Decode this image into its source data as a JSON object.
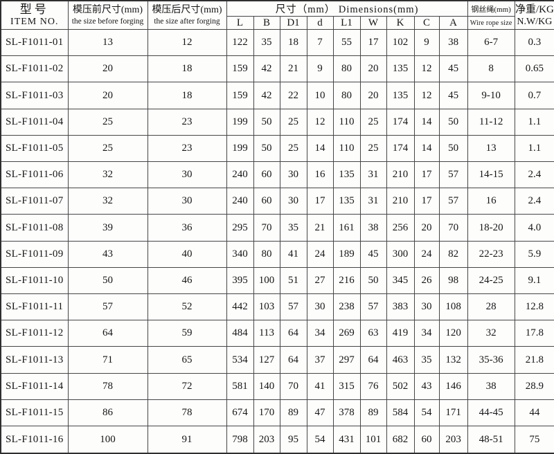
{
  "header": {
    "item_no": {
      "zh": "型号",
      "en": "ITEM NO."
    },
    "before_size": {
      "zh": "模压前尺寸(mm)",
      "en": "the size before forging"
    },
    "after_size": {
      "zh": "模压后尺寸(mm)",
      "en": "the size after forging"
    },
    "dimensions": {
      "title": "尺寸（mm） Dimensions(mm)",
      "sub": [
        "L",
        "B",
        "D1",
        "d",
        "L1",
        "W",
        "K",
        "C",
        "A"
      ]
    },
    "wire_rope": {
      "zh": "钢丝绳(mm)",
      "en": "Wire rope size"
    },
    "net_weight": {
      "zh": "净重/KG",
      "en": "N.W/KG"
    }
  },
  "table": {
    "rows": [
      {
        "item": "SL-F1011-01",
        "before": "13",
        "after": "12",
        "dims": [
          "122",
          "35",
          "18",
          "7",
          "55",
          "17",
          "102",
          "9",
          "38"
        ],
        "wire": "6-7",
        "nw": "0.3"
      },
      {
        "item": "SL-F1011-02",
        "before": "20",
        "after": "18",
        "dims": [
          "159",
          "42",
          "21",
          "9",
          "80",
          "20",
          "135",
          "12",
          "45"
        ],
        "wire": "8",
        "nw": "0.65"
      },
      {
        "item": "SL-F1011-03",
        "before": "20",
        "after": "18",
        "dims": [
          "159",
          "42",
          "22",
          "10",
          "80",
          "20",
          "135",
          "12",
          "45"
        ],
        "wire": "9-10",
        "nw": "0.7"
      },
      {
        "item": "SL-F1011-04",
        "before": "25",
        "after": "23",
        "dims": [
          "199",
          "50",
          "25",
          "12",
          "110",
          "25",
          "174",
          "14",
          "50"
        ],
        "wire": "11-12",
        "nw": "1.1"
      },
      {
        "item": "SL-F1011-05",
        "before": "25",
        "after": "23",
        "dims": [
          "199",
          "50",
          "25",
          "14",
          "110",
          "25",
          "174",
          "14",
          "50"
        ],
        "wire": "13",
        "nw": "1.1"
      },
      {
        "item": "SL-F1011-06",
        "before": "32",
        "after": "30",
        "dims": [
          "240",
          "60",
          "30",
          "16",
          "135",
          "31",
          "210",
          "17",
          "57"
        ],
        "wire": "14-15",
        "nw": "2.4"
      },
      {
        "item": "SL-F1011-07",
        "before": "32",
        "after": "30",
        "dims": [
          "240",
          "60",
          "30",
          "17",
          "135",
          "31",
          "210",
          "17",
          "57"
        ],
        "wire": "16",
        "nw": "2.4"
      },
      {
        "item": "SL-F1011-08",
        "before": "39",
        "after": "36",
        "dims": [
          "295",
          "70",
          "35",
          "21",
          "161",
          "38",
          "256",
          "20",
          "70"
        ],
        "wire": "18-20",
        "nw": "4.0"
      },
      {
        "item": "SL-F1011-09",
        "before": "43",
        "after": "40",
        "dims": [
          "340",
          "80",
          "41",
          "24",
          "189",
          "45",
          "300",
          "24",
          "82"
        ],
        "wire": "22-23",
        "nw": "5.9"
      },
      {
        "item": "SL-F1011-10",
        "before": "50",
        "after": "46",
        "dims": [
          "395",
          "100",
          "51",
          "27",
          "216",
          "50",
          "345",
          "26",
          "98"
        ],
        "wire": "24-25",
        "nw": "9.1"
      },
      {
        "item": "SL-F1011-11",
        "before": "57",
        "after": "52",
        "dims": [
          "442",
          "103",
          "57",
          "30",
          "238",
          "57",
          "383",
          "30",
          "108"
        ],
        "wire": "28",
        "nw": "12.8"
      },
      {
        "item": "SL-F1011-12",
        "before": "64",
        "after": "59",
        "dims": [
          "484",
          "113",
          "64",
          "34",
          "269",
          "63",
          "419",
          "34",
          "120"
        ],
        "wire": "32",
        "nw": "17.8"
      },
      {
        "item": "SL-F1011-13",
        "before": "71",
        "after": "65",
        "dims": [
          "534",
          "127",
          "64",
          "37",
          "297",
          "64",
          "463",
          "35",
          "132"
        ],
        "wire": "35-36",
        "nw": "21.8"
      },
      {
        "item": "SL-F1011-14",
        "before": "78",
        "after": "72",
        "dims": [
          "581",
          "140",
          "70",
          "41",
          "315",
          "76",
          "502",
          "43",
          "146"
        ],
        "wire": "38",
        "nw": "28.9"
      },
      {
        "item": "SL-F1011-15",
        "before": "86",
        "after": "78",
        "dims": [
          "674",
          "170",
          "89",
          "47",
          "378",
          "89",
          "584",
          "54",
          "171"
        ],
        "wire": "44-45",
        "nw": "44"
      },
      {
        "item": "SL-F1011-16",
        "before": "100",
        "after": "91",
        "dims": [
          "798",
          "203",
          "95",
          "54",
          "431",
          "101",
          "682",
          "60",
          "203"
        ],
        "wire": "48-51",
        "nw": "75"
      }
    ]
  },
  "colors": {
    "background": "#fdfdfc",
    "grid_line": "#454545",
    "outer_border": "#2f2f2f",
    "text": "#151515"
  }
}
